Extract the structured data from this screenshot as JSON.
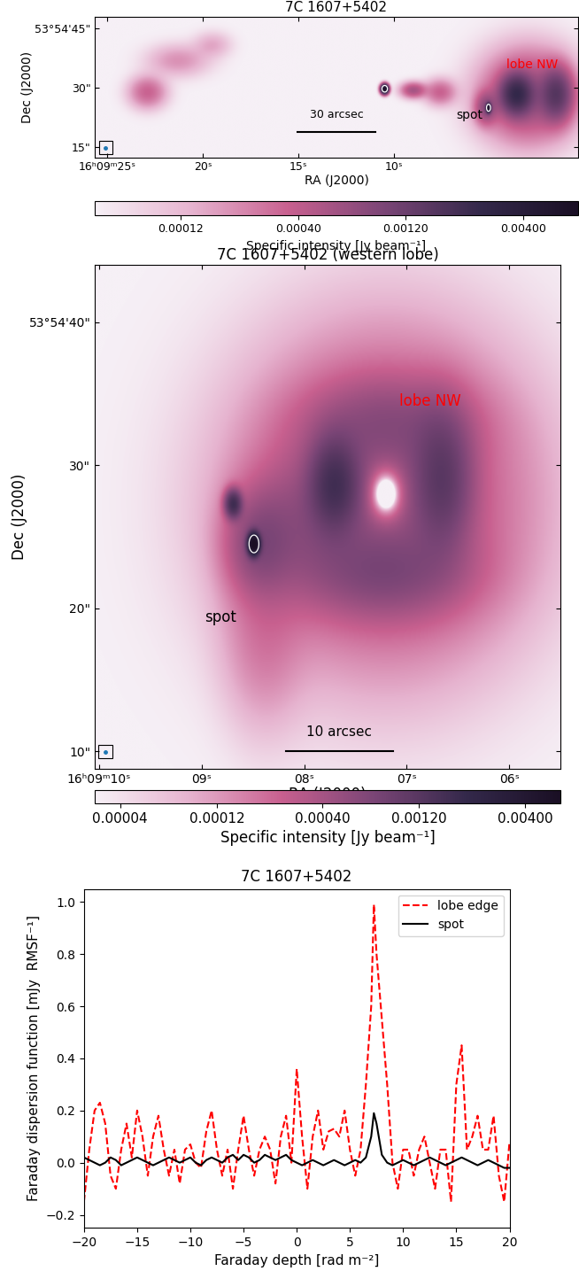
{
  "chart_data": [
    {
      "type": "image",
      "title": "7C 1607+5402",
      "x_label": "RA (J2000)",
      "y_label": "Dec (J2000)",
      "xlim": [
        25.65,
        0.4
      ],
      "ylim": [
        12.5,
        48.0
      ],
      "xticks": [
        {
          "value": 25,
          "label": "16ʰ09ᵐ25ˢ"
        },
        {
          "value": 20,
          "label": "20ˢ"
        },
        {
          "value": 15,
          "label": "15ˢ"
        },
        {
          "value": 10,
          "label": "10ˢ"
        }
      ],
      "yticks": [
        {
          "value": 45,
          "label": "53°54'45\""
        },
        {
          "value": 30,
          "label": "30\""
        },
        {
          "value": 15,
          "label": "15\""
        }
      ],
      "colorbar_label": "Specific intensity [Jy beam⁻¹]",
      "color_range": [
        5e-05,
        0.007
      ],
      "colorbar_ticks": [
        {
          "value": 0.00012,
          "label": "0.00012"
        },
        {
          "value": 0.0004,
          "label": "0.00040"
        },
        {
          "value": 0.0012,
          "label": "0.00120"
        },
        {
          "value": 0.004,
          "label": "0.00400"
        }
      ],
      "log": true,
      "background": 5e-05,
      "components": [
        {
          "ra": 10.5,
          "dec": 29.8,
          "peak": 0.006,
          "size_ra": 0.12,
          "size_dec": 0.7
        },
        {
          "ra": 9.0,
          "dec": 29.5,
          "peak": 0.0005,
          "size_ra": 0.4,
          "size_dec": 1.2
        },
        {
          "ra": 7.6,
          "dec": 29.0,
          "peak": 0.0003,
          "size_ra": 0.5,
          "size_dec": 2.0
        },
        {
          "ra": 3.0,
          "dec": 28.0,
          "peak": 0.0006,
          "size_ra": 1.5,
          "size_dec": 7.0
        },
        {
          "ra": 3.6,
          "dec": 28.5,
          "peak": 0.002,
          "size_ra": 0.5,
          "size_dec": 3.0
        },
        {
          "ra": 1.5,
          "dec": 28.5,
          "peak": 0.0012,
          "size_ra": 0.5,
          "size_dec": 4.0
        },
        {
          "ra": 5.07,
          "dec": 25.0,
          "peak": 0.005,
          "size_ra": 0.08,
          "size_dec": 0.7
        },
        {
          "ra": 5.2,
          "dec": 25.0,
          "peak": 0.0006,
          "size_ra": 0.35,
          "size_dec": 2.5
        },
        {
          "ra": 22.9,
          "dec": 29.0,
          "peak": 0.0003,
          "size_ra": 0.6,
          "size_dec": 2.5
        },
        {
          "ra": 21.3,
          "dec": 37.0,
          "peak": 0.00015,
          "size_ra": 1.0,
          "size_dec": 2.5
        },
        {
          "ra": 19.5,
          "dec": 41.0,
          "peak": 0.0001,
          "size_ra": 0.6,
          "size_dec": 2.0
        }
      ],
      "contour_levels": [
        0.003
      ],
      "annotations": [
        {
          "text": "spot",
          "color": "black"
        },
        {
          "text": "lobe NW",
          "color": "red"
        }
      ],
      "scale_bar": "30 arcsec"
    },
    {
      "type": "image",
      "title": "7C 1607+5402 (western lobe)",
      "x_label": "RA (J2000)",
      "y_label": "Dec (J2000)",
      "xlim": [
        10.04,
        5.5
      ],
      "ylim": [
        8.8,
        44.0
      ],
      "xticks": [
        {
          "value": 10,
          "label": "16ʰ09ᵐ10ˢ"
        },
        {
          "value": 9,
          "label": "09ˢ"
        },
        {
          "value": 8,
          "label": "08ˢ"
        },
        {
          "value": 7,
          "label": "07ˢ"
        },
        {
          "value": 6,
          "label": "06ˢ"
        }
      ],
      "yticks": [
        {
          "value": 40,
          "label": "53°54'40\""
        },
        {
          "value": 30,
          "label": "30\""
        },
        {
          "value": 20,
          "label": "20\""
        },
        {
          "value": 10,
          "label": "10\""
        }
      ],
      "colorbar_label": "Specific intensity [Jy beam⁻¹]",
      "color_range": [
        3e-05,
        0.006
      ],
      "colorbar_ticks": [
        {
          "value": 4e-05,
          "label": "0.00004"
        },
        {
          "value": 0.00012,
          "label": "0.00012"
        },
        {
          "value": 0.0004,
          "label": "0.00040"
        },
        {
          "value": 0.0012,
          "label": "0.00120"
        },
        {
          "value": 0.004,
          "label": "0.00400"
        }
      ],
      "log": true,
      "background": 3e-05,
      "components": [
        {
          "ra": 8.49,
          "dec": 24.5,
          "peak": 0.006,
          "size_ra": 0.035,
          "size_dec": 0.45
        },
        {
          "ra": 8.69,
          "dec": 27.3,
          "peak": 0.0015,
          "size_ra": 0.05,
          "size_dec": 0.6
        },
        {
          "ra": 8.45,
          "dec": 24.5,
          "peak": 0.0004,
          "size_ra": 0.2,
          "size_dec": 2.2
        },
        {
          "ra": 8.05,
          "dec": 26.0,
          "peak": 0.00025,
          "size_ra": 0.35,
          "size_dec": 3.0
        },
        {
          "ra": 8.4,
          "dec": 18.0,
          "peak": 0.00012,
          "size_ra": 0.25,
          "size_dec": 4.0
        },
        {
          "ra": 7.2,
          "dec": 27.5,
          "peak": 0.0004,
          "size_ra": 0.85,
          "size_dec": 7.0
        },
        {
          "ra": 7.7,
          "dec": 28.7,
          "peak": 0.0012,
          "size_ra": 0.15,
          "size_dec": 2.0
        },
        {
          "ra": 6.65,
          "dec": 29.0,
          "peak": 0.0008,
          "size_ra": 0.18,
          "size_dec": 3.0
        },
        {
          "ra": 7.2,
          "dec": 33.0,
          "peak": 0.0003,
          "size_ra": 0.5,
          "size_dec": 2.0
        },
        {
          "ra": 7.2,
          "dec": 22.5,
          "peak": 0.0004,
          "size_ra": 0.5,
          "size_dec": 2.0
        },
        {
          "ra": 7.2,
          "dec": 28.0,
          "peak": -0.0006,
          "size_ra": 0.12,
          "size_dec": 1.3
        }
      ],
      "contour_levels": [
        0.003
      ],
      "annotations": [
        {
          "text": "spot",
          "color": "black"
        },
        {
          "text": "lobe NW",
          "color": "red"
        }
      ],
      "scale_bar": "10 arcsec"
    },
    {
      "type": "line",
      "title": "7C 1607+5402",
      "x_label": "Faraday depth [rad m⁻²]",
      "y_label": "Faraday dispersion function [mJy  RMSF⁻¹]",
      "xlim": [
        -20,
        20
      ],
      "ylim": [
        -0.25,
        1.05
      ],
      "xticks": [
        {
          "value": -20,
          "label": "−20"
        },
        {
          "value": -15,
          "label": "−15"
        },
        {
          "value": -10,
          "label": "−10"
        },
        {
          "value": -5,
          "label": "−5"
        },
        0,
        5,
        10,
        15,
        20
      ],
      "yticks": [
        {
          "value": -0.2,
          "label": "−0.2"
        },
        {
          "value": 0,
          "label": "0.0"
        },
        0.2,
        0.4,
        0.6,
        0.8,
        1.0
      ],
      "legend": "upper right",
      "x": [
        -20,
        -19.5,
        -19,
        -18.5,
        -18,
        -17.5,
        -17,
        -16.5,
        -16,
        -15.5,
        -15,
        -14.5,
        -14,
        -13.5,
        -13,
        -12.5,
        -12,
        -11.5,
        -11,
        -10.5,
        -10,
        -9.5,
        -9,
        -8.5,
        -8,
        -7.5,
        -7,
        -6.5,
        -6,
        -5.5,
        -5,
        -4.5,
        -4,
        -3.5,
        -3,
        -2.5,
        -2,
        -1.5,
        -1,
        -0.5,
        0,
        0.5,
        1,
        1.5,
        2,
        2.5,
        3,
        3.5,
        4,
        4.5,
        5,
        5.5,
        6,
        6.5,
        7,
        7.25,
        7.5,
        8,
        8.5,
        9,
        9.5,
        10,
        10.5,
        11,
        11.5,
        12,
        12.5,
        13,
        13.5,
        14,
        14.5,
        15,
        15.5,
        16,
        16.5,
        17,
        17.5,
        18,
        18.5,
        19,
        19.5,
        20
      ],
      "series": [
        {
          "name": "lobe edge",
          "color": "red",
          "line_style": "dashed",
          "values": [
            -0.15,
            0.05,
            0.2,
            0.23,
            0.15,
            -0.05,
            -0.1,
            0.05,
            0.15,
            0.02,
            0.2,
            0.1,
            -0.05,
            0.1,
            0.18,
            0.05,
            -0.05,
            0.05,
            -0.08,
            0.05,
            0.07,
            0.0,
            -0.02,
            0.12,
            0.2,
            0.05,
            -0.05,
            0.05,
            -0.1,
            0.05,
            0.18,
            0.05,
            -0.05,
            0.05,
            0.1,
            0.05,
            -0.08,
            0.1,
            0.18,
            0.0,
            0.36,
            0.1,
            -0.1,
            0.1,
            0.2,
            0.05,
            0.12,
            0.13,
            0.1,
            0.2,
            0.05,
            -0.05,
            0.05,
            0.3,
            0.6,
            0.99,
            0.8,
            0.55,
            0.3,
            0.0,
            -0.1,
            0.05,
            0.05,
            -0.05,
            0.05,
            0.1,
            0.0,
            -0.1,
            0.05,
            0.05,
            -0.15,
            0.3,
            0.45,
            0.05,
            0.1,
            0.18,
            0.05,
            0.05,
            0.18,
            -0.05,
            -0.15,
            0.08
          ]
        },
        {
          "name": "spot",
          "color": "black",
          "line_style": "solid",
          "values": [
            0.02,
            0.01,
            0.0,
            -0.01,
            0.0,
            0.02,
            0.01,
            -0.01,
            0.0,
            0.01,
            0.02,
            0.01,
            0.0,
            -0.01,
            0.0,
            0.01,
            0.02,
            0.01,
            0.0,
            0.01,
            0.02,
            0.0,
            -0.01,
            0.01,
            0.02,
            0.01,
            0.0,
            0.02,
            0.03,
            0.01,
            0.03,
            0.02,
            0.0,
            0.01,
            0.03,
            0.02,
            0.01,
            0.02,
            0.03,
            0.01,
            0.0,
            -0.01,
            0.0,
            0.01,
            0.0,
            -0.01,
            0.0,
            0.01,
            0.0,
            -0.01,
            0.0,
            0.01,
            0.0,
            0.02,
            0.1,
            0.19,
            0.15,
            0.03,
            0.0,
            -0.01,
            0.0,
            0.01,
            0.0,
            -0.01,
            0.0,
            0.01,
            0.02,
            0.01,
            0.0,
            -0.01,
            0.0,
            0.01,
            0.02,
            0.01,
            0.0,
            -0.01,
            0.0,
            0.01,
            0.0,
            -0.01,
            -0.02,
            -0.02
          ]
        }
      ]
    }
  ]
}
